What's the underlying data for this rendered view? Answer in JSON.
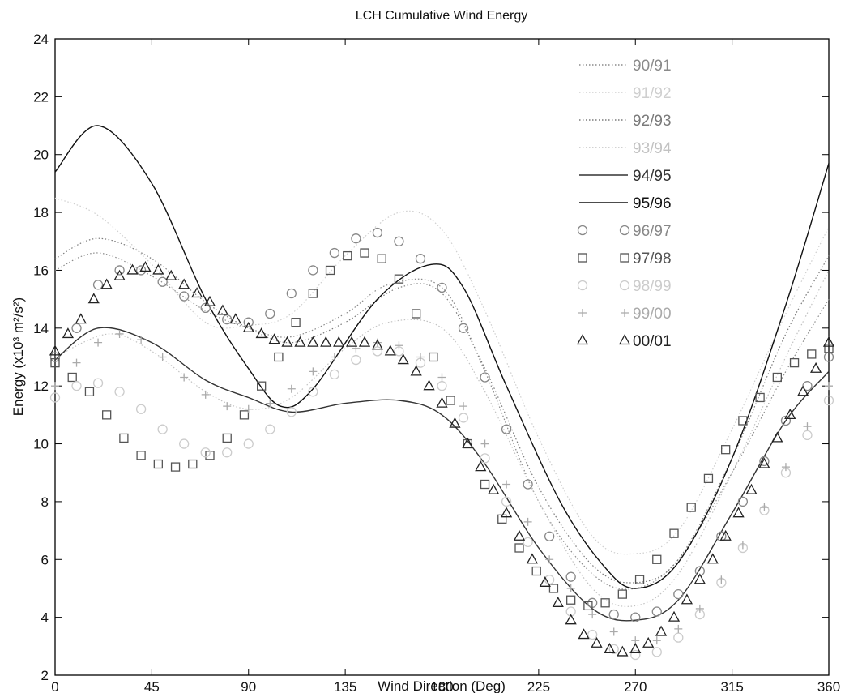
{
  "chart_data": {
    "type": "line",
    "title": "LCH Cumulative Wind Energy",
    "xlabel": "Wind Direction (Deg)",
    "ylabel": "Energy (x10³ m²/s²)",
    "xlim": [
      0,
      360
    ],
    "ylim": [
      2,
      24
    ],
    "xticks": [
      0,
      45,
      90,
      135,
      180,
      225,
      270,
      315,
      360
    ],
    "yticks": [
      2,
      4,
      6,
      8,
      10,
      12,
      14,
      16,
      18,
      20,
      22,
      24
    ],
    "grid": false,
    "legend_position": "top-right",
    "series": [
      {
        "name": "90/91",
        "style": "dotted",
        "marker": "none",
        "color": "#8a8a8a",
        "x": [
          0,
          20,
          45,
          70,
          90,
          110,
          135,
          155,
          180,
          200,
          225,
          250,
          270,
          290,
          315,
          340,
          360
        ],
        "y": [
          16,
          16.6,
          15.8,
          14.6,
          14.0,
          13.7,
          14.5,
          15.5,
          15.4,
          12.5,
          8.0,
          5.5,
          5.0,
          6.0,
          9.0,
          12.5,
          15.0
        ]
      },
      {
        "name": "91/92",
        "style": "dotted",
        "marker": "none",
        "color": "#cfcfcf",
        "x": [
          0,
          20,
          45,
          70,
          90,
          110,
          135,
          160,
          180,
          200,
          225,
          250,
          270,
          290,
          315,
          340,
          360
        ],
        "y": [
          18.5,
          17.9,
          16.2,
          14.2,
          14.1,
          14.5,
          16.5,
          18.0,
          17.4,
          14.6,
          10.2,
          6.8,
          6.2,
          7.0,
          10.5,
          14.5,
          17.5
        ]
      },
      {
        "name": "92/93",
        "style": "dotted",
        "marker": "none",
        "color": "#7a7a7a",
        "x": [
          0,
          20,
          45,
          70,
          90,
          110,
          135,
          160,
          180,
          200,
          225,
          250,
          270,
          290,
          315,
          340,
          360
        ],
        "y": [
          16.4,
          17.1,
          16.4,
          14.9,
          14.0,
          13.5,
          14.2,
          15.4,
          15.2,
          12.6,
          8.5,
          5.8,
          5.2,
          6.0,
          9.5,
          13.8,
          16.5
        ]
      },
      {
        "name": "93/94",
        "style": "dotted",
        "marker": "none",
        "color": "#c2c2c2",
        "x": [
          0,
          25,
          45,
          70,
          90,
          110,
          135,
          155,
          180,
          200,
          225,
          250,
          270,
          290,
          315,
          340,
          360
        ],
        "y": [
          13.0,
          13.8,
          13.2,
          11.8,
          11.2,
          11.6,
          13.3,
          14.2,
          14.0,
          11.8,
          8.0,
          5.0,
          4.4,
          5.5,
          9.0,
          13.0,
          16.0
        ]
      },
      {
        "name": "94/95",
        "style": "solid",
        "marker": "none",
        "color": "#333333",
        "x": [
          0,
          20,
          45,
          70,
          90,
          110,
          135,
          160,
          180,
          200,
          225,
          250,
          270,
          290,
          315,
          340,
          360
        ],
        "y": [
          12.9,
          14.0,
          13.5,
          12.2,
          11.6,
          11.1,
          11.4,
          11.5,
          11.0,
          9.3,
          6.4,
          4.3,
          3.9,
          4.6,
          7.6,
          10.8,
          12.5
        ]
      },
      {
        "name": "95/96",
        "style": "solid",
        "marker": "none",
        "color": "#111111",
        "x": [
          0,
          20,
          45,
          70,
          90,
          105,
          120,
          150,
          175,
          190,
          210,
          235,
          255,
          270,
          290,
          315,
          340,
          360
        ],
        "y": [
          19.4,
          21.0,
          19.0,
          15.0,
          12.6,
          11.3,
          11.9,
          15.0,
          16.2,
          15.4,
          12.0,
          8.0,
          5.8,
          5.0,
          5.9,
          9.5,
          14.8,
          19.7
        ]
      },
      {
        "name": "96/97",
        "style": "none",
        "marker": "circle",
        "color": "#888888",
        "x": [
          0,
          10,
          20,
          30,
          40,
          50,
          60,
          70,
          80,
          90,
          100,
          110,
          120,
          130,
          140,
          150,
          160,
          170,
          180,
          190,
          200,
          210,
          220,
          230,
          240,
          250,
          260,
          270,
          280,
          290,
          300,
          310,
          320,
          330,
          340,
          350,
          360
        ],
        "y": [
          13.0,
          14.0,
          15.5,
          16.0,
          16.0,
          15.6,
          15.1,
          14.7,
          14.3,
          14.2,
          14.5,
          15.2,
          16.0,
          16.6,
          17.1,
          17.3,
          17.0,
          16.4,
          15.4,
          14.0,
          12.3,
          10.5,
          8.6,
          6.8,
          5.4,
          4.5,
          4.1,
          4.0,
          4.2,
          4.8,
          5.6,
          6.8,
          8.0,
          9.4,
          10.8,
          12.0,
          13.0
        ]
      },
      {
        "name": "97/98",
        "style": "none",
        "marker": "square",
        "color": "#555555",
        "x": [
          0,
          8,
          16,
          24,
          32,
          40,
          48,
          56,
          64,
          72,
          80,
          88,
          96,
          104,
          112,
          120,
          128,
          136,
          144,
          152,
          160,
          168,
          176,
          184,
          192,
          200,
          208,
          216,
          224,
          232,
          240,
          248,
          256,
          264,
          272,
          280,
          288,
          296,
          304,
          312,
          320,
          328,
          336,
          344,
          352,
          360
        ],
        "y": [
          12.8,
          12.3,
          11.8,
          11.0,
          10.2,
          9.6,
          9.3,
          9.2,
          9.3,
          9.6,
          10.2,
          11.0,
          12.0,
          13.0,
          14.2,
          15.2,
          16.0,
          16.5,
          16.6,
          16.4,
          15.7,
          14.5,
          13.0,
          11.5,
          10.0,
          8.6,
          7.4,
          6.4,
          5.6,
          5.0,
          4.6,
          4.4,
          4.5,
          4.8,
          5.3,
          6.0,
          6.9,
          7.8,
          8.8,
          9.8,
          10.8,
          11.6,
          12.3,
          12.8,
          13.1,
          13.3
        ]
      },
      {
        "name": "98/99",
        "style": "none",
        "marker": "circle",
        "color": "#cccccc",
        "x": [
          0,
          10,
          20,
          30,
          40,
          50,
          60,
          70,
          80,
          90,
          100,
          110,
          120,
          130,
          140,
          150,
          160,
          170,
          180,
          190,
          200,
          210,
          220,
          230,
          240,
          250,
          260,
          270,
          280,
          290,
          300,
          310,
          320,
          330,
          340,
          350,
          360
        ],
        "y": [
          11.6,
          12.0,
          12.1,
          11.8,
          11.2,
          10.5,
          10.0,
          9.7,
          9.7,
          10.0,
          10.5,
          11.1,
          11.8,
          12.4,
          12.9,
          13.2,
          13.2,
          12.8,
          12.0,
          10.9,
          9.5,
          8.0,
          6.6,
          5.3,
          4.2,
          3.4,
          2.9,
          2.7,
          2.8,
          3.3,
          4.1,
          5.2,
          6.4,
          7.7,
          9.0,
          10.3,
          11.5
        ]
      },
      {
        "name": "99/00",
        "style": "none",
        "marker": "plus",
        "color": "#aaaaaa",
        "x": [
          0,
          10,
          20,
          30,
          40,
          50,
          60,
          70,
          80,
          90,
          100,
          110,
          120,
          130,
          140,
          150,
          160,
          170,
          180,
          190,
          200,
          210,
          220,
          230,
          240,
          250,
          260,
          270,
          280,
          290,
          300,
          310,
          320,
          330,
          340,
          350,
          360
        ],
        "y": [
          12.0,
          12.8,
          13.5,
          13.8,
          13.6,
          13.0,
          12.3,
          11.7,
          11.3,
          11.2,
          11.4,
          11.9,
          12.5,
          13.0,
          13.3,
          13.5,
          13.4,
          13.0,
          12.3,
          11.3,
          10.0,
          8.6,
          7.3,
          6.0,
          5.0,
          4.1,
          3.5,
          3.2,
          3.2,
          3.6,
          4.3,
          5.3,
          6.5,
          7.8,
          9.2,
          10.6,
          12.0
        ]
      },
      {
        "name": "00/01",
        "style": "none",
        "marker": "triangle",
        "color": "#222222",
        "x": [
          0,
          6,
          12,
          18,
          24,
          30,
          36,
          42,
          48,
          54,
          60,
          66,
          72,
          78,
          84,
          90,
          96,
          102,
          108,
          114,
          120,
          126,
          132,
          138,
          144,
          150,
          156,
          162,
          168,
          174,
          180,
          186,
          192,
          198,
          204,
          210,
          216,
          222,
          228,
          234,
          240,
          246,
          252,
          258,
          264,
          270,
          276,
          282,
          288,
          294,
          300,
          306,
          312,
          318,
          324,
          330,
          336,
          342,
          348,
          354,
          360
        ],
        "y": [
          13.2,
          13.8,
          14.3,
          15.0,
          15.5,
          15.8,
          16.0,
          16.1,
          16.0,
          15.8,
          15.5,
          15.2,
          14.9,
          14.6,
          14.3,
          14.0,
          13.8,
          13.6,
          13.5,
          13.5,
          13.5,
          13.5,
          13.5,
          13.5,
          13.5,
          13.4,
          13.2,
          12.9,
          12.5,
          12.0,
          11.4,
          10.7,
          10.0,
          9.2,
          8.4,
          7.6,
          6.8,
          6.0,
          5.2,
          4.5,
          3.9,
          3.4,
          3.1,
          2.9,
          2.8,
          2.9,
          3.1,
          3.5,
          4.0,
          4.6,
          5.3,
          6.0,
          6.8,
          7.6,
          8.4,
          9.3,
          10.2,
          11.0,
          11.8,
          12.6,
          13.5
        ]
      }
    ]
  }
}
